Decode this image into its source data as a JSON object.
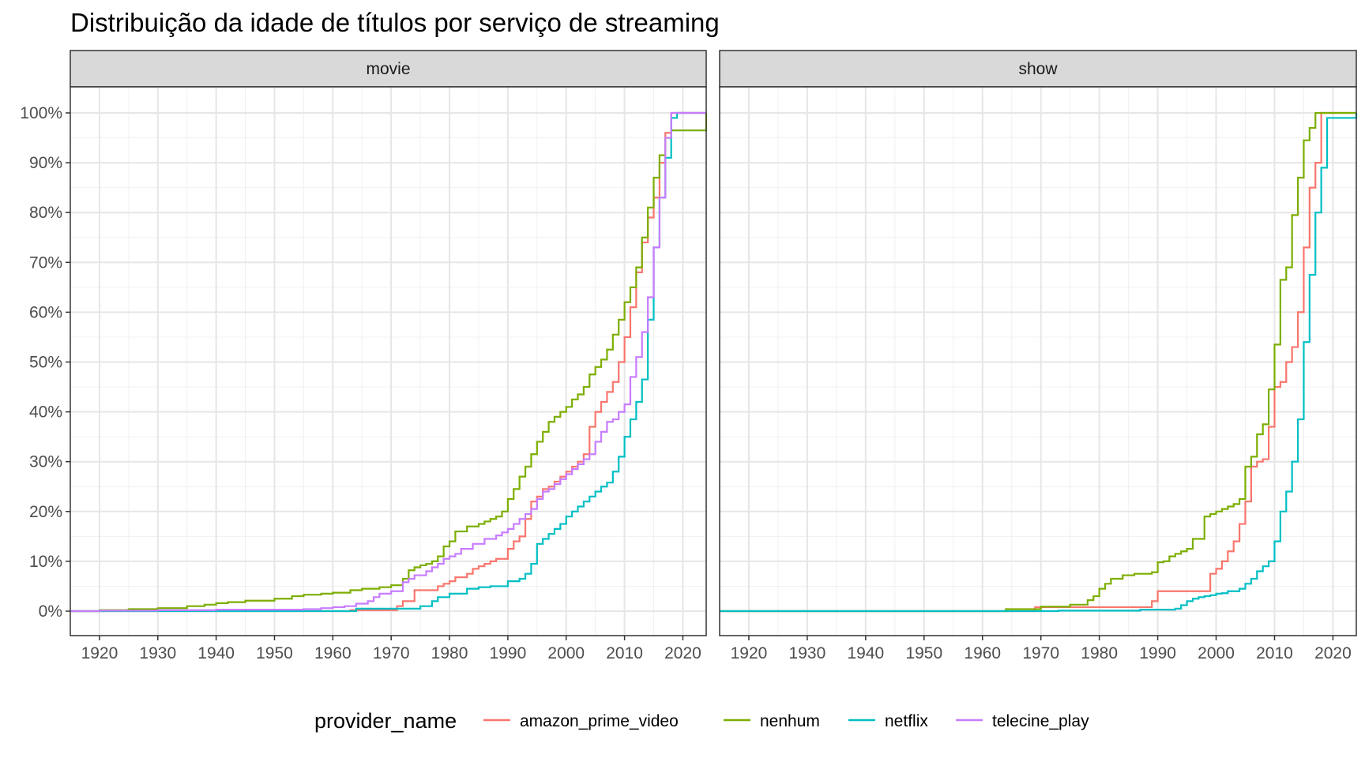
{
  "chart_data": {
    "type": "line",
    "step": true,
    "title": "Distribuição da idade de títulos por serviço de streaming",
    "xlabel": "",
    "ylabel": "",
    "xlim": [
      1915,
      2024
    ],
    "ylim": [
      0,
      1
    ],
    "x_ticks": [
      1920,
      1930,
      1940,
      1950,
      1960,
      1970,
      1980,
      1990,
      2000,
      2010,
      2020
    ],
    "y_ticks": [
      0,
      0.1,
      0.2,
      0.3,
      0.4,
      0.5,
      0.6,
      0.7,
      0.8,
      0.9,
      1.0
    ],
    "y_tick_labels": [
      "0%",
      "10%",
      "20%",
      "30%",
      "40%",
      "50%",
      "60%",
      "70%",
      "80%",
      "90%",
      "100%"
    ],
    "grid": true,
    "legend": {
      "title": "provider_name",
      "position": "bottom",
      "entries": [
        "amazon_prime_video",
        "nenhum",
        "netflix",
        "telecine_play"
      ]
    },
    "colors": {
      "amazon_prime_video": "#F8766D",
      "nenhum": "#7CAE00",
      "netflix": "#00BFC4",
      "telecine_play": "#C77CFF"
    },
    "panels": [
      {
        "label": "movie",
        "series": [
          {
            "name": "amazon_prime_video",
            "x": [
              1915,
              1963,
              1971,
              1972,
              1974,
              1978,
              1979,
              1980,
              1981,
              1983,
              1984,
              1985,
              1986,
              1987,
              1988,
              1990,
              1991,
              1992,
              1993,
              1994,
              1995,
              1996,
              1997,
              1998,
              1999,
              2000,
              2001,
              2002,
              2003,
              2004,
              2005,
              2006,
              2007,
              2008,
              2009,
              2010,
              2011,
              2012,
              2013,
              2014,
              2015,
              2016,
              2017,
              2018,
              2024
            ],
            "y": [
              0,
              0.002,
              0.01,
              0.02,
              0.042,
              0.05,
              0.055,
              0.06,
              0.068,
              0.075,
              0.085,
              0.09,
              0.095,
              0.1,
              0.105,
              0.125,
              0.14,
              0.15,
              0.185,
              0.22,
              0.23,
              0.245,
              0.25,
              0.26,
              0.27,
              0.28,
              0.29,
              0.3,
              0.315,
              0.37,
              0.4,
              0.42,
              0.44,
              0.46,
              0.5,
              0.55,
              0.61,
              0.68,
              0.74,
              0.79,
              0.83,
              0.9,
              0.96,
              1.0,
              1.0
            ]
          },
          {
            "name": "nenhum",
            "x": [
              1915,
              1920,
              1925,
              1930,
              1935,
              1938,
              1940,
              1942,
              1945,
              1950,
              1953,
              1955,
              1958,
              1960,
              1963,
              1965,
              1968,
              1970,
              1972,
              1973,
              1974,
              1975,
              1976,
              1977,
              1978,
              1979,
              1980,
              1981,
              1983,
              1985,
              1986,
              1987,
              1988,
              1989,
              1990,
              1991,
              1992,
              1993,
              1994,
              1995,
              1996,
              1997,
              1998,
              1999,
              2000,
              2001,
              2002,
              2003,
              2004,
              2005,
              2006,
              2007,
              2008,
              2009,
              2010,
              2011,
              2012,
              2013,
              2014,
              2015,
              2016,
              2017,
              2018,
              2024
            ],
            "y": [
              0,
              0.002,
              0.004,
              0.006,
              0.01,
              0.013,
              0.016,
              0.018,
              0.021,
              0.025,
              0.03,
              0.033,
              0.035,
              0.037,
              0.042,
              0.045,
              0.048,
              0.052,
              0.065,
              0.082,
              0.088,
              0.092,
              0.095,
              0.1,
              0.11,
              0.13,
              0.14,
              0.16,
              0.17,
              0.175,
              0.18,
              0.185,
              0.19,
              0.2,
              0.225,
              0.245,
              0.27,
              0.29,
              0.315,
              0.34,
              0.36,
              0.38,
              0.39,
              0.4,
              0.41,
              0.425,
              0.435,
              0.45,
              0.475,
              0.49,
              0.505,
              0.525,
              0.555,
              0.585,
              0.62,
              0.65,
              0.69,
              0.75,
              0.81,
              0.87,
              0.915,
              0.95,
              0.965,
              1.0
            ]
          },
          {
            "name": "netflix",
            "x": [
              1915,
              1964,
              1975,
              1977,
              1978,
              1980,
              1983,
              1985,
              1987,
              1990,
              1992,
              1993,
              1994,
              1995,
              1996,
              1997,
              1998,
              1999,
              2000,
              2001,
              2002,
              2003,
              2004,
              2005,
              2006,
              2007,
              2008,
              2009,
              2010,
              2011,
              2012,
              2013,
              2014,
              2015,
              2016,
              2017,
              2018,
              2019,
              2024
            ],
            "y": [
              0,
              0.005,
              0.01,
              0.02,
              0.028,
              0.035,
              0.045,
              0.048,
              0.05,
              0.06,
              0.065,
              0.075,
              0.095,
              0.135,
              0.145,
              0.155,
              0.165,
              0.175,
              0.19,
              0.2,
              0.21,
              0.22,
              0.23,
              0.24,
              0.25,
              0.258,
              0.28,
              0.31,
              0.35,
              0.385,
              0.42,
              0.465,
              0.585,
              0.73,
              0.83,
              0.91,
              0.99,
              1.0,
              1.0
            ]
          },
          {
            "name": "telecine_play",
            "x": [
              1915,
              1920,
              1930,
              1940,
              1955,
              1958,
              1960,
              1962,
              1964,
              1966,
              1967,
              1968,
              1970,
              1972,
              1973,
              1974,
              1976,
              1977,
              1978,
              1979,
              1980,
              1981,
              1982,
              1984,
              1986,
              1988,
              1989,
              1990,
              1991,
              1992,
              1993,
              1994,
              1995,
              1996,
              1997,
              1998,
              1999,
              2000,
              2001,
              2002,
              2003,
              2004,
              2005,
              2006,
              2007,
              2008,
              2009,
              2010,
              2011,
              2012,
              2013,
              2014,
              2015,
              2016,
              2017,
              2018,
              2024
            ],
            "y": [
              0,
              0.001,
              0.002,
              0.003,
              0.004,
              0.006,
              0.008,
              0.01,
              0.015,
              0.02,
              0.028,
              0.035,
              0.04,
              0.058,
              0.065,
              0.072,
              0.08,
              0.088,
              0.095,
              0.105,
              0.11,
              0.115,
              0.125,
              0.135,
              0.145,
              0.152,
              0.158,
              0.165,
              0.175,
              0.185,
              0.195,
              0.205,
              0.225,
              0.24,
              0.245,
              0.255,
              0.265,
              0.275,
              0.285,
              0.295,
              0.305,
              0.315,
              0.34,
              0.36,
              0.38,
              0.385,
              0.4,
              0.415,
              0.47,
              0.51,
              0.56,
              0.63,
              0.73,
              0.83,
              0.95,
              1.0,
              1.0
            ]
          }
        ]
      },
      {
        "label": "show",
        "series": [
          {
            "name": "amazon_prime_video",
            "x": [
              1915,
              1969,
              1989,
              1990,
              1999,
              2000,
              2001,
              2002,
              2003,
              2004,
              2005,
              2006,
              2007,
              2008,
              2009,
              2010,
              2011,
              2012,
              2013,
              2014,
              2015,
              2016,
              2017,
              2018,
              2024
            ],
            "y": [
              0,
              0.008,
              0.02,
              0.04,
              0.075,
              0.085,
              0.1,
              0.12,
              0.14,
              0.175,
              0.22,
              0.29,
              0.3,
              0.305,
              0.37,
              0.45,
              0.46,
              0.5,
              0.53,
              0.6,
              0.73,
              0.85,
              0.9,
              1.0,
              1.0
            ]
          },
          {
            "name": "nenhum",
            "x": [
              1915,
              1964,
              1970,
              1975,
              1978,
              1979,
              1980,
              1981,
              1982,
              1984,
              1986,
              1989,
              1990,
              1991,
              1992,
              1993,
              1994,
              1995,
              1996,
              1998,
              1999,
              2000,
              2001,
              2002,
              2003,
              2004,
              2005,
              2006,
              2007,
              2008,
              2009,
              2010,
              2011,
              2012,
              2013,
              2014,
              2015,
              2016,
              2017,
              2024
            ],
            "y": [
              0,
              0.004,
              0.009,
              0.013,
              0.022,
              0.03,
              0.045,
              0.055,
              0.065,
              0.072,
              0.075,
              0.078,
              0.098,
              0.1,
              0.11,
              0.115,
              0.12,
              0.125,
              0.145,
              0.19,
              0.195,
              0.2,
              0.205,
              0.21,
              0.215,
              0.225,
              0.29,
              0.31,
              0.355,
              0.375,
              0.445,
              0.535,
              0.665,
              0.69,
              0.795,
              0.87,
              0.945,
              0.97,
              1.0,
              1.0
            ]
          },
          {
            "name": "netflix",
            "x": [
              1915,
              1973,
              1987,
              1993,
              1994,
              1995,
              1996,
              1997,
              1998,
              1999,
              2000,
              2001,
              2002,
              2004,
              2005,
              2006,
              2007,
              2008,
              2009,
              2010,
              2011,
              2012,
              2013,
              2014,
              2015,
              2016,
              2017,
              2018,
              2019,
              2024
            ],
            "y": [
              0,
              0.001,
              0.003,
              0.005,
              0.012,
              0.02,
              0.025,
              0.028,
              0.03,
              0.032,
              0.035,
              0.036,
              0.04,
              0.045,
              0.055,
              0.065,
              0.08,
              0.09,
              0.1,
              0.14,
              0.2,
              0.24,
              0.3,
              0.385,
              0.54,
              0.675,
              0.8,
              0.89,
              0.99,
              1.0
            ]
          }
        ]
      }
    ]
  }
}
